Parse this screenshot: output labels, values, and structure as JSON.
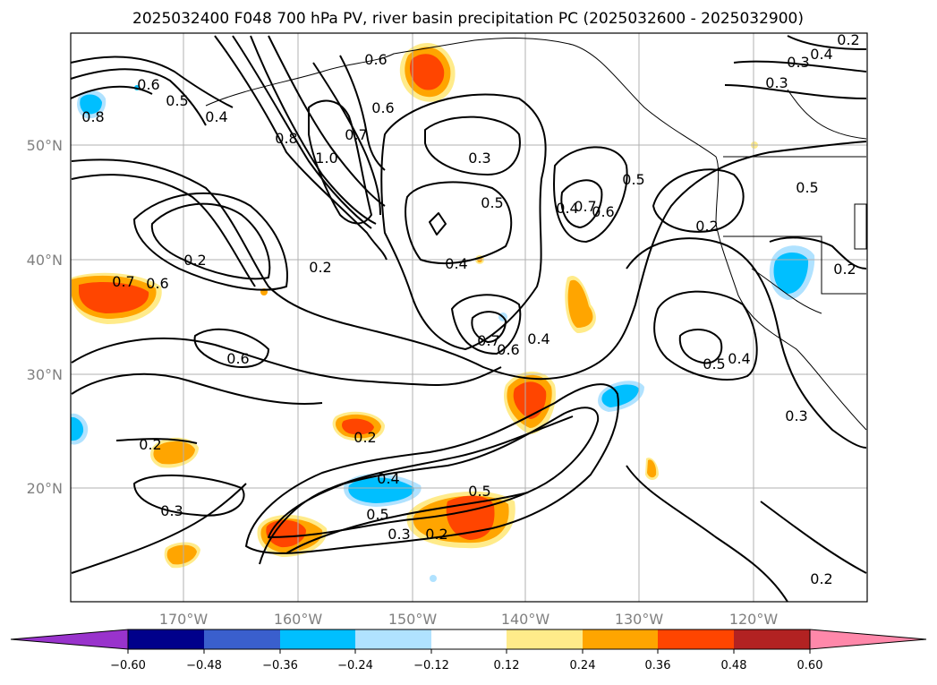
{
  "title": "2025032400 F048 700 hPa PV, river basin precipitation PC (2025032600 - 2025032900)",
  "map": {
    "lat_ticks": [
      {
        "value": 50,
        "label": "50°N"
      },
      {
        "value": 40,
        "label": "40°N"
      },
      {
        "value": 30,
        "label": "30°N"
      },
      {
        "value": 20,
        "label": "20°N"
      }
    ],
    "lon_ticks": [
      {
        "value": -170,
        "label": "170°W"
      },
      {
        "value": -160,
        "label": "160°W"
      },
      {
        "value": -150,
        "label": "150°W"
      },
      {
        "value": -140,
        "label": "140°W"
      },
      {
        "value": -130,
        "label": "130°W"
      },
      {
        "value": -120,
        "label": "120°W"
      }
    ],
    "grid": true,
    "contour_labels": [
      "0.8",
      "0.6",
      "0.5",
      "0.4",
      "0.8",
      "1.0",
      "0.7",
      "0.6",
      "0.6",
      "0.3",
      "0.4",
      "0.3",
      "0.2",
      "0.3",
      "0.5",
      "0.4",
      "0.5",
      "0.4",
      "0.6",
      "0.7",
      "0.5",
      "0.2",
      "0.2",
      "0.2",
      "0.6",
      "0.2",
      "0.7",
      "0.6",
      "0.4",
      "0.6",
      "0.7",
      "0.5",
      "0.4",
      "0.3",
      "0.2",
      "0.2",
      "0.3",
      "0.4",
      "0.5",
      "0.5",
      "0.3",
      "0.2",
      "0.2"
    ]
  },
  "colorbar": {
    "tick_labels": [
      "−0.60",
      "−0.48",
      "−0.36",
      "−0.24",
      "−0.12",
      "0.12",
      "0.24",
      "0.36",
      "0.48",
      "0.60"
    ],
    "colors": [
      "#9933cc",
      "#00008b",
      "#3a5fcd",
      "#00bfff",
      "#b0e2ff",
      "#ffffff",
      "#ffeb8a",
      "#ffa500",
      "#ff4500",
      "#b22222",
      "#ff88aa"
    ]
  }
}
